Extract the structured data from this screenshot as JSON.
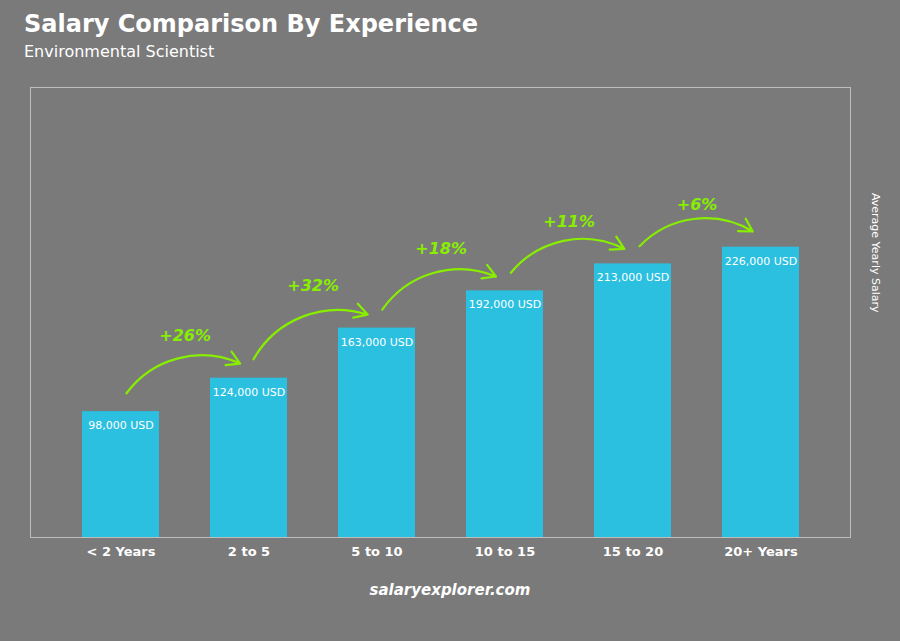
{
  "chart_data": {
    "type": "bar",
    "title": "Salary Comparison By Experience",
    "subtitle": "Environmental Scientist",
    "caption": "salaryexplorer.com",
    "ylabel": "Average Yearly Salary",
    "categories": [
      "< 2 Years",
      "2 to 5",
      "5 to 10",
      "10 to 15",
      "15 to 20",
      "20+ Years"
    ],
    "values": [
      98000,
      124000,
      163000,
      192000,
      213000,
      226000
    ],
    "value_labels": [
      "98,000 USD",
      "124,000 USD",
      "163,000 USD",
      "192,000 USD",
      "213,000 USD",
      "226,000 USD"
    ],
    "data_labels": true,
    "color": "#2bbfe0",
    "ylim": [
      0,
      350300
    ],
    "tick_labels": "x",
    "grid": false,
    "annotations": [
      {
        "text": "+26%",
        "from": "< 2 Years",
        "to": "2 to 5",
        "color": "#88ee00"
      },
      {
        "text": "+32%",
        "from": "2 to 5",
        "to": "5 to 10",
        "color": "#88ee00"
      },
      {
        "text": "+18%",
        "from": "5 to 10",
        "to": "10 to 15",
        "color": "#88ee00"
      },
      {
        "text": "+11%",
        "from": "10 to 15",
        "to": "15 to 20",
        "color": "#88ee00"
      },
      {
        "text": "+6%",
        "from": "15 to 20",
        "to": "20+ Years",
        "color": "#88ee00"
      }
    ]
  }
}
